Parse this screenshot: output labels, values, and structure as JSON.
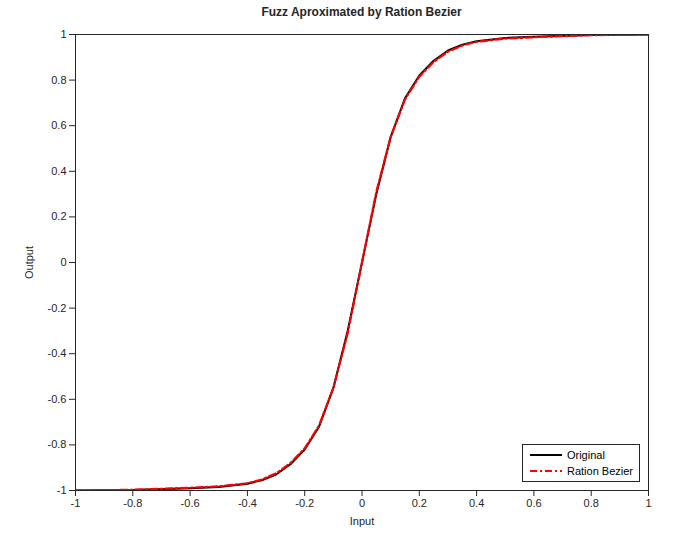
{
  "chart_data": {
    "type": "line",
    "title": "Fuzz Aproximated by Ration Bezier",
    "xlabel": "Input",
    "ylabel": "Output",
    "x": [
      -1,
      -0.8,
      -0.6,
      -0.5,
      -0.4,
      -0.35,
      -0.3,
      -0.25,
      -0.2,
      -0.15,
      -0.1,
      -0.05,
      0,
      0.05,
      0.1,
      0.15,
      0.2,
      0.25,
      0.3,
      0.35,
      0.4,
      0.5,
      0.6,
      0.8,
      1
    ],
    "series": [
      {
        "name": "Original",
        "color": "#000000",
        "line_style": "solid",
        "values": [
          -1,
          -0.998,
          -0.99,
          -0.985,
          -0.97,
          -0.955,
          -0.93,
          -0.885,
          -0.82,
          -0.72,
          -0.55,
          -0.3,
          0,
          0.3,
          0.55,
          0.72,
          0.82,
          0.885,
          0.93,
          0.955,
          0.97,
          0.985,
          0.99,
          0.998,
          1
        ]
      },
      {
        "name": "Ration Bezier",
        "color": "#ff0000",
        "line_style": "dashdot",
        "values": [
          -1,
          -0.997,
          -0.988,
          -0.982,
          -0.968,
          -0.952,
          -0.925,
          -0.88,
          -0.815,
          -0.715,
          -0.55,
          -0.31,
          0,
          0.31,
          0.55,
          0.715,
          0.815,
          0.88,
          0.925,
          0.952,
          0.968,
          0.982,
          0.988,
          0.997,
          1
        ]
      }
    ],
    "xlim": [
      -1,
      1
    ],
    "ylim": [
      -1,
      1
    ],
    "xticks": [
      -1,
      -0.8,
      -0.6,
      -0.4,
      -0.2,
      0,
      0.2,
      0.4,
      0.6,
      0.8,
      1
    ],
    "yticks": [
      -1,
      -0.8,
      -0.6,
      -0.4,
      -0.2,
      0,
      0.2,
      0.4,
      0.6,
      0.8,
      1
    ],
    "grid": false,
    "legend": "southeast"
  }
}
